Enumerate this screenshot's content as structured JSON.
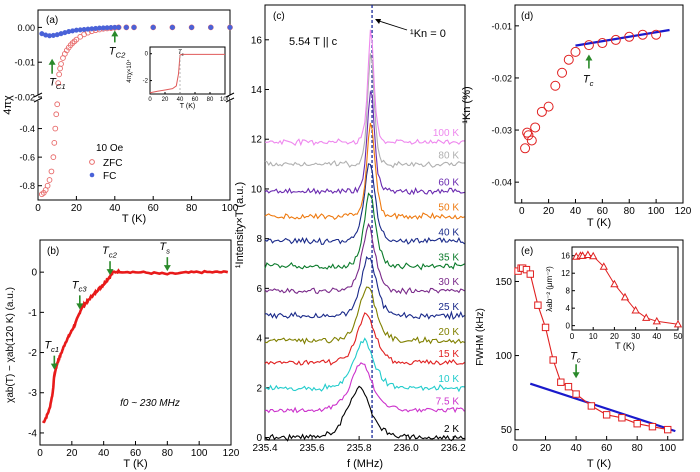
{
  "chart_data": [
    {
      "panel": "(a)",
      "type": "scatter",
      "ylabel": "4πχ",
      "xlabel": "T (K)",
      "xlim": [
        0,
        100
      ],
      "xticks": [
        0,
        20,
        40,
        60,
        80,
        100
      ],
      "upper_ylim": [
        -0.02,
        0.005
      ],
      "upper_yticks": [
        0.0,
        -0.01,
        -0.02
      ],
      "upper_ytick_labels": [
        "0.00",
        "-0.01",
        "-0.02"
      ],
      "lower_ylim": [
        -0.9,
        -0.2
      ],
      "lower_yticks": [
        -0.8,
        -0.6,
        -0.4
      ],
      "lower_ytick_labels": [
        "-0.8",
        "-0.6",
        "-0.4"
      ],
      "legend_title": "10 Oe",
      "series": [
        {
          "name": "ZFC",
          "color": "#e86a6a",
          "marker": "open-circle",
          "x": [
            2,
            3,
            4,
            5,
            6,
            7,
            8,
            8.5,
            9,
            9.5,
            10,
            10.5,
            11,
            11.5,
            12,
            13,
            14,
            15,
            16,
            17,
            18,
            19,
            20,
            22,
            24,
            26,
            28,
            30,
            32,
            34,
            36,
            38,
            40,
            42,
            46,
            50,
            60,
            70,
            80,
            90,
            100
          ],
          "y": [
            -0.86,
            -0.85,
            -0.83,
            -0.8,
            -0.76,
            -0.7,
            -0.6,
            -0.5,
            -0.4,
            -0.3,
            -0.23,
            -0.016,
            -0.0135,
            -0.0118,
            -0.0105,
            -0.0088,
            -0.0076,
            -0.0066,
            -0.0058,
            -0.0051,
            -0.0045,
            -0.004,
            -0.0035,
            -0.0027,
            -0.002,
            -0.0015,
            -0.0011,
            -0.0008,
            -0.0006,
            -0.0004,
            -0.0003,
            -0.0002,
            -0.0001,
            0,
            0,
            0,
            0,
            0,
            0,
            0,
            0
          ]
        },
        {
          "name": "FC",
          "color": "#4a62d8",
          "marker": "filled-circle",
          "x": [
            2,
            4,
            6,
            8,
            10,
            12,
            14,
            16,
            18,
            20,
            22,
            24,
            26,
            28,
            30,
            32,
            34,
            36,
            38,
            40,
            42,
            46,
            50,
            60,
            70,
            80,
            90,
            100
          ],
          "y": [
            -0.0018,
            -0.0022,
            -0.0024,
            -0.0023,
            -0.0021,
            -0.0018,
            -0.0015,
            -0.0012,
            -0.001,
            -0.0008,
            -0.0007,
            -0.0006,
            -0.0005,
            -0.0004,
            -0.0003,
            -0.0002,
            -0.00015,
            -0.0001,
            -5e-05,
            0,
            0,
            0,
            0,
            0,
            0,
            0,
            0,
            0
          ]
        }
      ],
      "annotations": [
        {
          "label": "T",
          "sub": "C1",
          "x": 11
        },
        {
          "label": "T",
          "sub": "C2",
          "x": 40
        }
      ],
      "inset": {
        "ylabel": "4πχ×10⁴",
        "xlabel": "T (K)",
        "xlim": [
          0,
          100
        ],
        "xticks": [
          0,
          20,
          40,
          60,
          80,
          100
        ],
        "ylim": [
          -3,
          0.5
        ],
        "yticks": [
          -2,
          0
        ],
        "marker_label": "T",
        "marker_sub": "c",
        "marker_x": 40,
        "color": "#e05a5a",
        "x": [
          0,
          10,
          20,
          30,
          35,
          38,
          40,
          42,
          45,
          50,
          60,
          70,
          80,
          90,
          100
        ],
        "y": [
          -2.9,
          -2.8,
          -2.7,
          -2.6,
          -2.4,
          -1.5,
          -0.1,
          -0.05,
          -0.05,
          -0.05,
          -0.05,
          -0.05,
          -0.05,
          -0.05,
          -0.05
        ]
      }
    },
    {
      "panel": "(b)",
      "type": "line",
      "ylabel": "χab(T) − χab(120 K) (a.u.)",
      "xlabel": "T (K)",
      "xlim": [
        0,
        120
      ],
      "ylim": [
        -4.3,
        0.8
      ],
      "xticks": [
        0,
        20,
        40,
        60,
        80,
        100,
        120
      ],
      "yticks": [
        -4,
        -3,
        -2,
        -1,
        0
      ],
      "color": "#e81a1a",
      "x": [
        2,
        4,
        6,
        8,
        9,
        10,
        11,
        12,
        14,
        16,
        18,
        20,
        22,
        24,
        26,
        28,
        30,
        32,
        34,
        36,
        38,
        40,
        42,
        44,
        46,
        50,
        60,
        70,
        80,
        90,
        100,
        110,
        118
      ],
      "y": [
        -3.75,
        -3.6,
        -3.4,
        -3.0,
        -2.55,
        -2.4,
        -2.25,
        -2.15,
        -1.95,
        -1.75,
        -1.6,
        -1.45,
        -1.3,
        -1.1,
        -0.9,
        -0.8,
        -0.72,
        -0.62,
        -0.55,
        -0.45,
        -0.38,
        -0.3,
        -0.2,
        -0.1,
        0.0,
        0.02,
        0.0,
        -0.02,
        -0.05,
        -0.02,
        0.0,
        0.0,
        0.0
      ],
      "annotations": [
        {
          "label": "T",
          "sub": "c1",
          "x": 9,
          "y": -2.5
        },
        {
          "label": "T",
          "sub": "c3",
          "x": 25,
          "y": -1.0
        },
        {
          "label": "T",
          "sub": "c2",
          "x": 44,
          "y": -0.15
        },
        {
          "label": "T",
          "sub": "s",
          "x": 80,
          "y": -0.05
        }
      ],
      "note": "f0 ~ 230 MHz"
    },
    {
      "panel": "(c)",
      "type": "line",
      "xlabel": "f (MHz)",
      "ylabel": "¹Intensity×T (a.u.)",
      "xlim": [
        235.4,
        236.25
      ],
      "ylim": [
        -0.1,
        17.4
      ],
      "xticks": [
        235.4,
        235.6,
        235.8,
        236.0,
        236.2
      ],
      "xtick_labels": [
        "235.4",
        "235.6",
        "235.8",
        "236.0",
        "236.2"
      ],
      "yticks": [
        0,
        2,
        4,
        6,
        8,
        10,
        12,
        14,
        16
      ],
      "field_label": "5.54 T || c",
      "k_zero_label": "¹Kn = 0",
      "k_zero_x": 235.855,
      "series": [
        {
          "name": "2 K",
          "color": "#000000",
          "offset": 0,
          "center": 235.8,
          "width": 0.07,
          "amp": 2.0
        },
        {
          "name": "7.5 K",
          "color": "#cc33cc",
          "offset": 1.1,
          "center": 235.81,
          "width": 0.065,
          "amp": 1.9
        },
        {
          "name": "10 K",
          "color": "#22cccc",
          "offset": 2.0,
          "center": 235.82,
          "width": 0.06,
          "amp": 1.9
        },
        {
          "name": "15 K",
          "color": "#e02020",
          "offset": 3.0,
          "center": 235.83,
          "width": 0.055,
          "amp": 2.0
        },
        {
          "name": "20 K",
          "color": "#808000",
          "offset": 3.9,
          "center": 235.835,
          "width": 0.05,
          "amp": 2.2
        },
        {
          "name": "25 K",
          "color": "#1a2a8a",
          "offset": 4.9,
          "center": 235.84,
          "width": 0.045,
          "amp": 2.4
        },
        {
          "name": "30 K",
          "color": "#7a2a8a",
          "offset": 5.9,
          "center": 235.84,
          "width": 0.04,
          "amp": 2.6
        },
        {
          "name": "35 K",
          "color": "#0a7a2a",
          "offset": 6.9,
          "center": 235.845,
          "width": 0.035,
          "amp": 2.9
        },
        {
          "name": "40 K",
          "color": "#1a2a8a",
          "offset": 7.9,
          "center": 235.845,
          "width": 0.032,
          "amp": 3.2
        },
        {
          "name": "50 K",
          "color": "#ee7a10",
          "offset": 8.9,
          "center": 235.85,
          "width": 0.025,
          "amp": 3.8
        },
        {
          "name": "60 K",
          "color": "#6a2ab0",
          "offset": 9.9,
          "center": 235.85,
          "width": 0.022,
          "amp": 4.1
        },
        {
          "name": "80 K",
          "color": "#b0b0b0",
          "offset": 11.0,
          "center": 235.85,
          "width": 0.02,
          "amp": 4.5
        },
        {
          "name": "100 K",
          "color": "#ee88ee",
          "offset": 11.9,
          "center": 235.85,
          "width": 0.018,
          "amp": 4.6
        }
      ]
    },
    {
      "panel": "(d)",
      "type": "scatter",
      "ylabel": "¹Kn (%)",
      "xlabel": "T (K)",
      "xlim": [
        -5,
        120
      ],
      "ylim": [
        -0.044,
        -0.006
      ],
      "xticks": [
        0,
        20,
        40,
        60,
        80,
        100,
        120
      ],
      "yticks": [
        -0.01,
        -0.02,
        -0.03,
        -0.04
      ],
      "ytick_labels": [
        "-0.01",
        "-0.02",
        "-0.03",
        "-0.04"
      ],
      "marker_color": "#e02020",
      "x": [
        2.5,
        4,
        5,
        7.5,
        10,
        15,
        20,
        25,
        30,
        35,
        40,
        50,
        60,
        70,
        80,
        90,
        100
      ],
      "y": [
        -0.0335,
        -0.0305,
        -0.031,
        -0.032,
        -0.0295,
        -0.0265,
        -0.0255,
        -0.0215,
        -0.019,
        -0.0165,
        -0.015,
        -0.0137,
        -0.0133,
        -0.0127,
        -0.0121,
        -0.0117,
        -0.0117
      ],
      "fit": {
        "color": "#1a1acc",
        "x": [
          40,
          110
        ],
        "y": [
          -0.0138,
          -0.0108
        ]
      },
      "annotation": {
        "label": "T",
        "sub": "c",
        "x": 50
      }
    },
    {
      "panel": "(e)",
      "type": "line",
      "ylabel": "FWHM (kHz)",
      "xlabel": "T (K)",
      "xlim": [
        0,
        110
      ],
      "ylim": [
        43,
        178
      ],
      "xticks": [
        0,
        20,
        40,
        60,
        80,
        100
      ],
      "yticks": [
        50,
        100,
        150
      ],
      "marker_color": "#e02020",
      "x": [
        2,
        4,
        5,
        7.5,
        10,
        15,
        20,
        25,
        30,
        35,
        40,
        50,
        60,
        70,
        80,
        90,
        100
      ],
      "y": [
        157,
        159,
        159,
        158,
        155,
        134,
        119,
        97,
        82,
        79,
        74,
        66,
        60,
        58,
        54,
        52,
        50
      ],
      "fit": {
        "color": "#1a1acc",
        "x": [
          10,
          105
        ],
        "y": [
          81,
          49
        ]
      },
      "annotation": {
        "label": "T",
        "sub": "c",
        "x": 40
      },
      "inset": {
        "xlabel": "T (K)",
        "ylabel": "λab⁻² (μm⁻²)",
        "xlim": [
          0,
          50
        ],
        "ylim": [
          -1,
          18
        ],
        "xticks": [
          0,
          10,
          20,
          30,
          40,
          50
        ],
        "yticks": [
          0,
          4,
          8,
          12,
          16
        ],
        "x": [
          2,
          4,
          5,
          7.5,
          10,
          15,
          20,
          25,
          30,
          35,
          40,
          50
        ],
        "y": [
          15.8,
          16.0,
          16.0,
          16.2,
          15.9,
          13.5,
          9.5,
          6.5,
          3.5,
          1.8,
          1.0,
          0.3
        ]
      }
    }
  ]
}
